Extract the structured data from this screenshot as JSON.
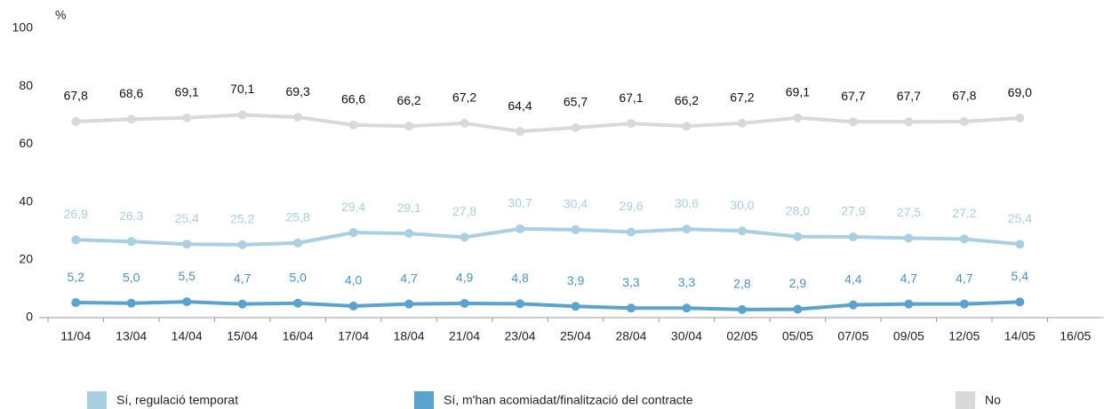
{
  "chart_data": {
    "type": "line",
    "y_label": "%",
    "categories": [
      "11/04",
      "13/04",
      "14/04",
      "15/04",
      "16/04",
      "17/04",
      "18/04",
      "21/04",
      "23/04",
      "25/04",
      "28/04",
      "30/04",
      "02/05",
      "05/05",
      "07/05",
      "09/05",
      "12/05",
      "14/05",
      "16/05"
    ],
    "ylim": [
      0,
      100
    ],
    "yticks": [
      0,
      20,
      40,
      60,
      80,
      100
    ],
    "grid": false,
    "legend": "bottom",
    "series": [
      {
        "name": "Sí, regulació temporat",
        "color": "#a9d0e2",
        "label_color": "#a9d0e2",
        "values": [
          26.9,
          26.3,
          25.4,
          25.2,
          25.8,
          29.4,
          29.1,
          27.8,
          30.7,
          30.4,
          29.6,
          30.6,
          30.0,
          28.0,
          27.9,
          27.5,
          27.2,
          25.4,
          null
        ],
        "value_labels": [
          "26,9",
          "26,3",
          "25,4",
          "25,2",
          "25,8",
          "29,4",
          "29,1",
          "27,8",
          "30,7",
          "30,4",
          "29,6",
          "30,6",
          "30,0",
          "28,0",
          "27,9",
          "27,5",
          "27,2",
          "25,4",
          null
        ]
      },
      {
        "name": "Sí, m'han acomiadat/finalització del contracte",
        "color": "#5ba3cf",
        "label_color": "#4b93c3",
        "values": [
          5.2,
          5.0,
          5.5,
          4.7,
          5.0,
          4.0,
          4.7,
          4.9,
          4.8,
          3.9,
          3.3,
          3.3,
          2.8,
          2.9,
          4.4,
          4.7,
          4.7,
          5.4,
          null
        ],
        "value_labels": [
          "5,2",
          "5,0",
          "5,5",
          "4,7",
          "5,0",
          "4,0",
          "4,7",
          "4,9",
          "4,8",
          "3,9",
          "3,3",
          "3,3",
          "2,8",
          "2,9",
          "4,4",
          "4,7",
          "4,7",
          "5,4",
          null
        ]
      },
      {
        "name": "No",
        "color": "#d9d9d9",
        "label_color": "#111111",
        "values": [
          67.8,
          68.6,
          69.1,
          70.1,
          69.3,
          66.6,
          66.2,
          67.2,
          64.4,
          65.7,
          67.1,
          66.2,
          67.2,
          69.1,
          67.7,
          67.7,
          67.8,
          69.0,
          null
        ],
        "value_labels": [
          "67,8",
          "68,6",
          "69,1",
          "70,1",
          "69,3",
          "66,6",
          "66,2",
          "67,2",
          "64,4",
          "65,7",
          "67,1",
          "66,2",
          "67,2",
          "69,1",
          "67,7",
          "67,7",
          "67,8",
          "69,0",
          null
        ]
      }
    ]
  }
}
